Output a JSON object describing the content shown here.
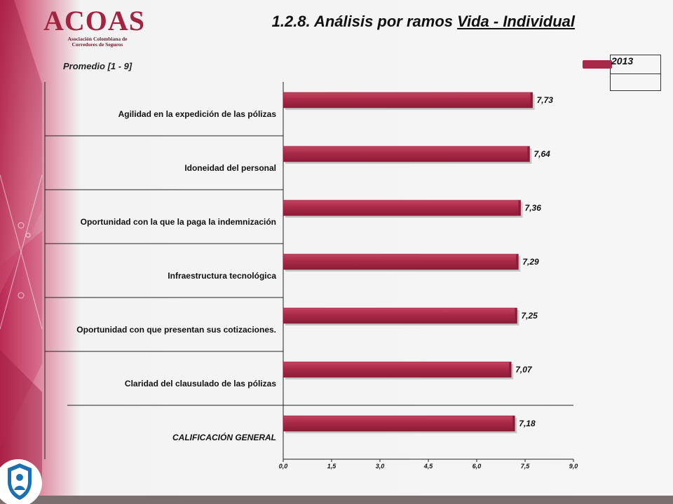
{
  "logo": {
    "name": "ACOAS",
    "subtitle_line1": "Asociación Colombiana de",
    "subtitle_line2": "Corredores de Seguros"
  },
  "slide": {
    "title_prefix": "1.2.8. Análisis por ramos ",
    "title_underlined": "Vida - Individual",
    "subtitle": "Promedio  [1 - 9]"
  },
  "legend": {
    "label": "2013"
  },
  "colors": {
    "bar": "#a92a48",
    "bar_dark": "#8a1c37",
    "bar_light": "#c5435f",
    "accent_bg": "#a3243f"
  },
  "chart_data": {
    "type": "bar",
    "orientation": "horizontal",
    "categories": [
      "Agilidad en la expedición de las pólizas",
      "Idoneidad del personal",
      "Oportunidad con la que la paga la indemnización",
      "Infraestructura tecnológica",
      "Oportunidad con que presentan sus cotizaciones.",
      "Claridad del clausulado de las pólizas",
      "CALIFICACIÓN GENERAL"
    ],
    "series": [
      {
        "name": "2013",
        "values": [
          7.73,
          7.64,
          7.36,
          7.29,
          7.25,
          7.07,
          7.18
        ],
        "labels": [
          "7,73",
          "7,64",
          "7,36",
          "7,29",
          "7,25",
          "7,07",
          "7,18"
        ]
      }
    ],
    "xlim": [
      0,
      9
    ],
    "xticks": [
      "0,0",
      "1,5",
      "3,0",
      "4,5",
      "6,0",
      "7,5",
      "9,0"
    ],
    "xtick_values": [
      0,
      1.5,
      3,
      4.5,
      6,
      7.5,
      9
    ],
    "grid": false,
    "legend_position": "top-right"
  }
}
